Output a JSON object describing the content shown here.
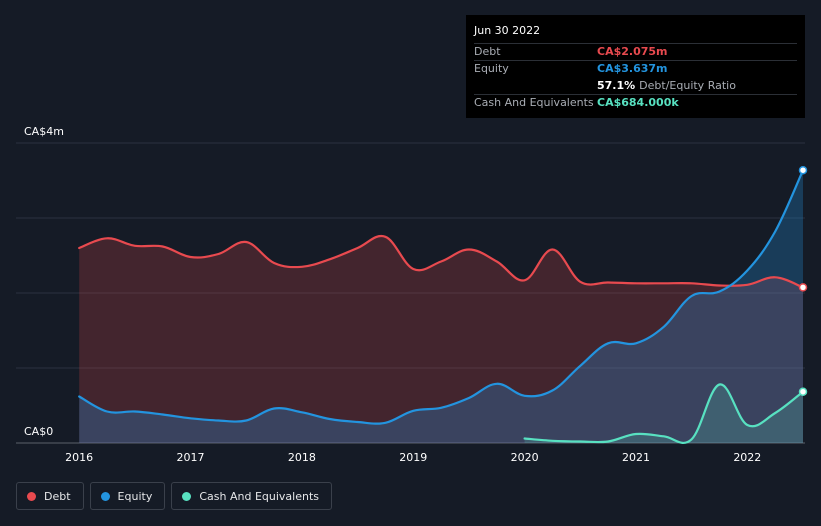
{
  "tooltip": {
    "date": "Jun 30 2022",
    "debt_label": "Debt",
    "debt_value": "CA$2.075m",
    "equity_label": "Equity",
    "equity_value": "CA$3.637m",
    "ratio_value": "57.1%",
    "ratio_label": "Debt/Equity Ratio",
    "cash_label": "Cash And Equivalents",
    "cash_value": "CA$684.000k"
  },
  "legend": {
    "debt": "Debt",
    "equity": "Equity",
    "cash": "Cash And Equivalents"
  },
  "colors": {
    "debt": "#e84a4f",
    "equity": "#2394df",
    "cash": "#58e1c1",
    "background": "#151b26"
  },
  "chart_data": {
    "type": "line",
    "ylim": [
      0,
      4
    ],
    "y_unit": "CA$ millions",
    "y_tick_labels": [
      {
        "value": 4,
        "label": "CA$4m"
      },
      {
        "value": 0,
        "label": "CA$0"
      }
    ],
    "xlim": [
      2015.72,
      2022.5
    ],
    "x_ticks": [
      2016,
      2017,
      2018,
      2019,
      2020,
      2021,
      2022
    ],
    "x_tick_labels": [
      "2016",
      "2017",
      "2018",
      "2019",
      "2020",
      "2021",
      "2022"
    ],
    "grid": true,
    "legend_position": "bottom-left",
    "series": [
      {
        "name": "Debt",
        "key": "debt",
        "x": [
          2016.0,
          2016.25,
          2016.5,
          2016.75,
          2017.0,
          2017.25,
          2017.5,
          2017.75,
          2018.0,
          2018.25,
          2018.5,
          2018.75,
          2019.0,
          2019.25,
          2019.5,
          2019.75,
          2020.0,
          2020.25,
          2020.5,
          2020.75,
          2021.0,
          2021.25,
          2021.5,
          2021.75,
          2022.0,
          2022.25,
          2022.5
        ],
        "values": [
          2.6,
          2.73,
          2.63,
          2.62,
          2.48,
          2.52,
          2.68,
          2.4,
          2.35,
          2.45,
          2.6,
          2.75,
          2.32,
          2.42,
          2.58,
          2.42,
          2.17,
          2.58,
          2.15,
          2.14,
          2.13,
          2.13,
          2.13,
          2.1,
          2.11,
          2.21,
          2.075
        ]
      },
      {
        "name": "Equity",
        "key": "equity",
        "x": [
          2016.0,
          2016.25,
          2016.5,
          2016.75,
          2017.0,
          2017.25,
          2017.5,
          2017.75,
          2018.0,
          2018.25,
          2018.5,
          2018.75,
          2019.0,
          2019.25,
          2019.5,
          2019.75,
          2020.0,
          2020.25,
          2020.5,
          2020.75,
          2021.0,
          2021.25,
          2021.5,
          2021.75,
          2022.0,
          2022.25,
          2022.5
        ],
        "values": [
          0.62,
          0.42,
          0.42,
          0.38,
          0.33,
          0.3,
          0.3,
          0.46,
          0.41,
          0.32,
          0.28,
          0.27,
          0.43,
          0.47,
          0.6,
          0.79,
          0.63,
          0.7,
          1.03,
          1.33,
          1.33,
          1.55,
          1.96,
          2.02,
          2.3,
          2.82,
          3.637
        ]
      },
      {
        "name": "Cash And Equivalents",
        "key": "cash",
        "x": [
          2020.0,
          2020.25,
          2020.5,
          2020.75,
          2021.0,
          2021.25,
          2021.5,
          2021.75,
          2022.0,
          2022.25,
          2022.5
        ],
        "values": [
          0.06,
          0.03,
          0.02,
          0.02,
          0.12,
          0.09,
          0.05,
          0.78,
          0.24,
          0.4,
          0.684
        ]
      }
    ]
  }
}
